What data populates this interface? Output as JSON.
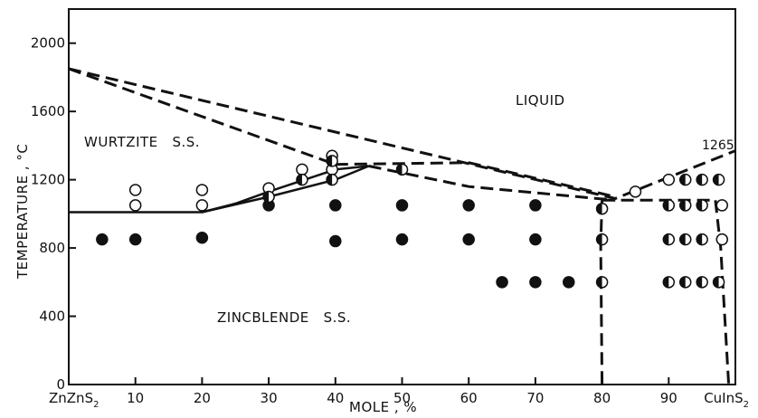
{
  "chart_data": {
    "type": "scatter",
    "title": "",
    "xlabel": "MOLE , %",
    "ylabel": "TEMPERATURE , °C",
    "xlim": [
      0,
      100
    ],
    "ylim": [
      0,
      2200
    ],
    "grid": false,
    "x_ticks": [
      {
        "value": 0,
        "label": "ZnZnS"
      },
      {
        "value": 10,
        "label": "10"
      },
      {
        "value": 20,
        "label": "20"
      },
      {
        "value": 30,
        "label": "30"
      },
      {
        "value": 40,
        "label": "40"
      },
      {
        "value": 50,
        "label": "50"
      },
      {
        "value": 60,
        "label": "60"
      },
      {
        "value": 70,
        "label": "70"
      },
      {
        "value": 80,
        "label": "80"
      },
      {
        "value": 90,
        "label": "90"
      },
      {
        "value": 100,
        "label": "CuInS"
      }
    ],
    "x_tick_subscript": "2",
    "y_ticks": [
      0,
      400,
      800,
      1200,
      1600,
      2000
    ],
    "regions": {
      "liquid": "LIQUID",
      "wurtzite": "WURTZITE   S.S.",
      "zincblende": "ZINCBLENDE   S.S."
    },
    "annotations": [
      {
        "text": "1265",
        "x": 100,
        "y": 1265
      }
    ],
    "series": [
      {
        "marker": "open",
        "points": [
          [
            10,
            1140
          ],
          [
            10,
            1050
          ],
          [
            20,
            1140
          ],
          [
            20,
            1050
          ],
          [
            30,
            1150
          ],
          [
            35,
            1260
          ],
          [
            39.5,
            1340
          ],
          [
            39.5,
            1260
          ],
          [
            85,
            1130
          ],
          [
            90,
            1200
          ],
          [
            98,
            1050
          ],
          [
            98,
            850
          ]
        ]
      },
      {
        "marker": "filled",
        "points": [
          [
            5,
            850
          ],
          [
            10,
            850
          ],
          [
            20,
            860
          ],
          [
            30,
            1050
          ],
          [
            40,
            1050
          ],
          [
            40,
            840
          ],
          [
            50,
            1050
          ],
          [
            50,
            850
          ],
          [
            60,
            1050
          ],
          [
            60,
            850
          ],
          [
            65,
            600
          ],
          [
            70,
            1050
          ],
          [
            70,
            850
          ],
          [
            70,
            600
          ],
          [
            75,
            600
          ]
        ]
      },
      {
        "marker": "half",
        "points": [
          [
            30,
            1100
          ],
          [
            35,
            1200
          ],
          [
            39.5,
            1310
          ],
          [
            39.5,
            1200
          ],
          [
            50,
            1260
          ],
          [
            80,
            1030
          ],
          [
            80,
            850
          ],
          [
            80,
            600
          ],
          [
            90,
            1050
          ],
          [
            90,
            850
          ],
          [
            90,
            600
          ],
          [
            92.5,
            1200
          ],
          [
            92.5,
            1050
          ],
          [
            92.5,
            850
          ],
          [
            92.5,
            600
          ],
          [
            95,
            1200
          ],
          [
            95,
            1050
          ],
          [
            95,
            850
          ],
          [
            95,
            600
          ],
          [
            97.5,
            1200
          ],
          [
            97.5,
            600
          ]
        ]
      }
    ],
    "lines": [
      {
        "style": "dashed",
        "points": [
          [
            0,
            1850
          ],
          [
            82,
            1090
          ],
          [
            100,
            1370
          ]
        ]
      },
      {
        "style": "dashed",
        "points": [
          [
            0,
            1850
          ],
          [
            40,
            1290
          ]
        ]
      },
      {
        "style": "dashed",
        "points": [
          [
            40,
            1290
          ],
          [
            60,
            1300
          ],
          [
            82,
            1100
          ]
        ]
      },
      {
        "style": "dashed",
        "points": [
          [
            45,
            1280
          ],
          [
            60,
            1160
          ],
          [
            82,
            1080
          ]
        ]
      },
      {
        "style": "dashed",
        "points": [
          [
            80,
            1080
          ],
          [
            97,
            1080
          ]
        ]
      },
      {
        "style": "dashed",
        "points": [
          [
            80,
            1080
          ],
          [
            79.8,
            820
          ],
          [
            80,
            0
          ]
        ]
      },
      {
        "style": "dashed",
        "points": [
          [
            97,
            1080
          ],
          [
            97.8,
            800
          ],
          [
            99,
            0
          ]
        ]
      },
      {
        "style": "solid",
        "points": [
          [
            0,
            1010
          ],
          [
            20,
            1010
          ],
          [
            25,
            1060
          ],
          [
            30,
            1130
          ],
          [
            40,
            1260
          ],
          [
            45,
            1280
          ]
        ]
      },
      {
        "style": "solid",
        "points": [
          [
            20,
            1010
          ],
          [
            30,
            1100
          ],
          [
            40,
            1200
          ],
          [
            45,
            1280
          ]
        ]
      }
    ]
  }
}
